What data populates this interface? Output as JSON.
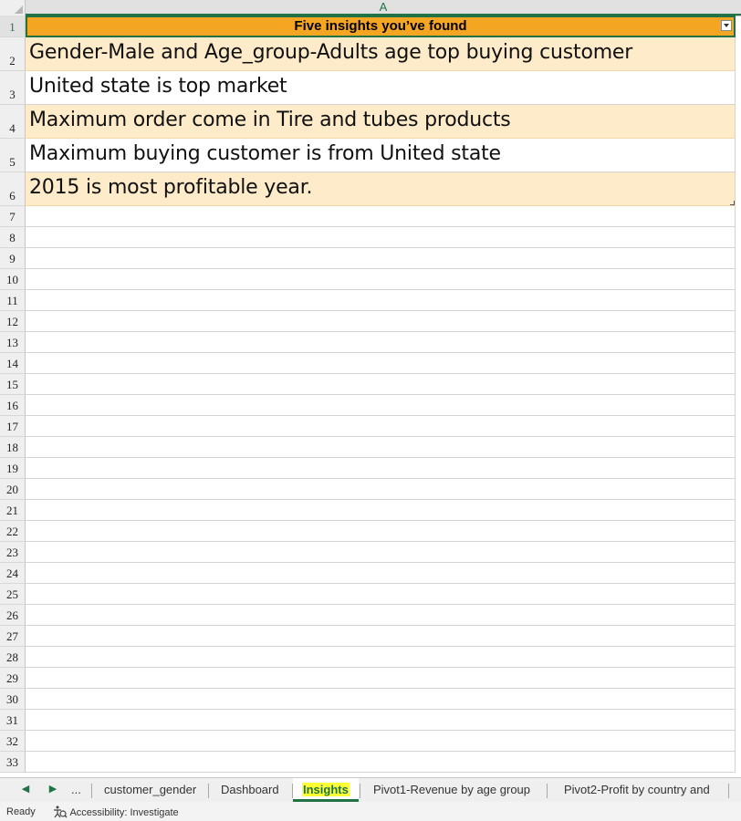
{
  "sheet": {
    "column_header": "A",
    "header_text": "Five insights you’ve found",
    "rows": [
      {
        "num": "2",
        "text": "Gender-Male and Age_group-Adults age  top buying customer"
      },
      {
        "num": "3",
        "text": "United state is top market"
      },
      {
        "num": "4",
        "text": "Maximum order come in Tire and tubes products"
      },
      {
        "num": "5",
        "text": "Maximum buying customer is from United state"
      },
      {
        "num": "6",
        "text": "2015 is most profitable year."
      }
    ],
    "header_row_num": "1",
    "empty_rows": [
      "7",
      "8",
      "9",
      "10",
      "11",
      "12",
      "13",
      "14",
      "15",
      "16",
      "17",
      "18",
      "19",
      "20",
      "21",
      "22",
      "23",
      "24",
      "25",
      "26",
      "27",
      "28",
      "29",
      "30",
      "31",
      "32",
      "33"
    ]
  },
  "tabs": {
    "prev_icon": "caret-left-icon",
    "next_icon": "caret-right-icon",
    "more_label": "...",
    "items": [
      {
        "label": "customer_gender"
      },
      {
        "label": "Dashboard"
      },
      {
        "label": "Insights",
        "active": true
      },
      {
        "label": "Pivot1-Revenue by age group"
      },
      {
        "label": "Pivot2-Profit by country and"
      }
    ]
  },
  "status": {
    "ready": "Ready",
    "accessibility": "Accessibility: Investigate"
  },
  "colors": {
    "header_fill": "#f4a522",
    "band_fill": "#fdebc9",
    "excel_green": "#217346",
    "tab_highlight": "#ffff33"
  }
}
